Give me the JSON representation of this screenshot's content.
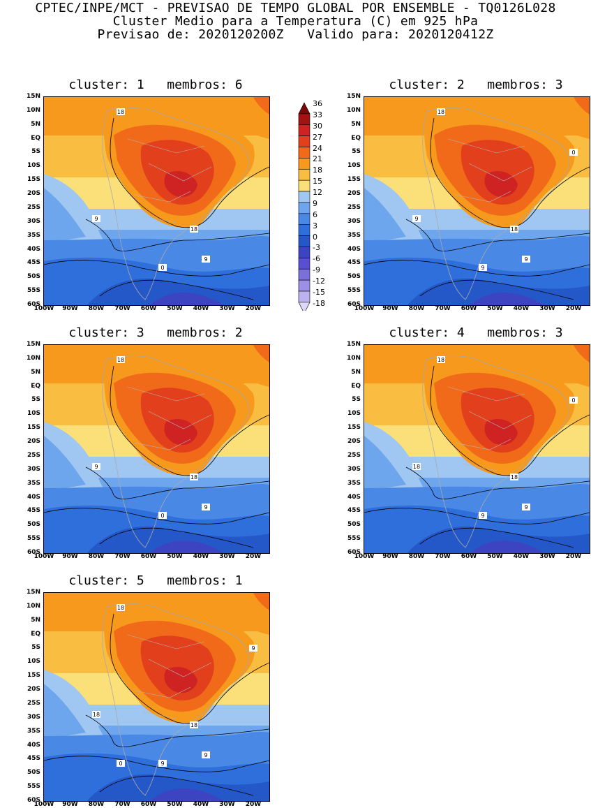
{
  "header": {
    "line1": "CPTEC/INPE/MCT - PREVISAO DE TEMPO GLOBAL POR ENSEMBLE - TQ0126L028",
    "line2": "Cluster Medio para a Temperatura (C) em 925 hPa",
    "line3": "Previsao de: 2020120200Z   Valido para: 2020120412Z"
  },
  "lat_labels": [
    "15N",
    "10N",
    "5N",
    "EQ",
    "5S",
    "10S",
    "15S",
    "20S",
    "25S",
    "30S",
    "35S",
    "40S",
    "45S",
    "50S",
    "55S",
    "60S"
  ],
  "lon_labels": [
    "100W",
    "90W",
    "80W",
    "70W",
    "60W",
    "50W",
    "40W",
    "30W",
    "20W"
  ],
  "colorbar": {
    "levels": [
      "36",
      "33",
      "30",
      "27",
      "24",
      "21",
      "18",
      "15",
      "12",
      "9",
      "6",
      "3",
      "0",
      "-3",
      "-6",
      "-9",
      "-12",
      "-15",
      "-18"
    ],
    "colors": [
      "#7a0a0a",
      "#a31313",
      "#cf2222",
      "#e2401c",
      "#f06a1a",
      "#f6991c",
      "#f9bd42",
      "#fbe07a",
      "#9fc7f2",
      "#6ea6ee",
      "#4a88e6",
      "#2f6fdc",
      "#2458c8",
      "#3d44c2",
      "#5a4fd0",
      "#7b6fdc",
      "#9b8fe6",
      "#bcb2ef",
      "#dcd6f7"
    ]
  },
  "panels": [
    {
      "cluster_label": "cluster:",
      "cluster": "1",
      "membros_label": "membros:",
      "membros": "6",
      "contours": [
        "18",
        "18",
        "9",
        "9",
        "0"
      ]
    },
    {
      "cluster_label": "cluster:",
      "cluster": "2",
      "membros_label": "membros:",
      "membros": "3",
      "contours": [
        "18",
        "18",
        "9",
        "9",
        "9",
        "0"
      ]
    },
    {
      "cluster_label": "cluster:",
      "cluster": "3",
      "membros_label": "membros:",
      "membros": "2",
      "contours": [
        "18",
        "18",
        "9",
        "9",
        "0"
      ]
    },
    {
      "cluster_label": "cluster:",
      "cluster": "4",
      "membros_label": "membros:",
      "membros": "3",
      "contours": [
        "18",
        "18",
        "18",
        "9",
        "9",
        "0"
      ]
    },
    {
      "cluster_label": "cluster:",
      "cluster": "5",
      "membros_label": "membros:",
      "membros": "1",
      "contours": [
        "18",
        "18",
        "18",
        "9",
        "9",
        "9",
        "0"
      ]
    }
  ]
}
